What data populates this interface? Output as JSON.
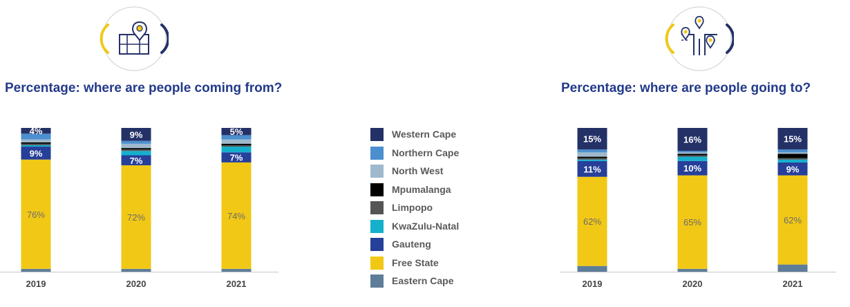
{
  "colors": {
    "Western Cape": "#233167",
    "Northern Cape": "#4b8fcf",
    "North West": "#9fb9cc",
    "Mpumalanga": "#000000",
    "Limpopo": "#555555",
    "KwaZulu-Natal": "#15b0cc",
    "Gauteng": "#263f99",
    "Free State": "#f1c816",
    "Eastern Cape": "#5e7d99",
    "accent_title": "#233a8a",
    "badge_yellow": "#f1c816",
    "badge_navy": "#233167"
  },
  "legend": {
    "items": [
      "Western Cape",
      "Northern Cape",
      "North West",
      "Mpumalanga",
      "Limpopo",
      "KwaZulu-Natal",
      "Gauteng",
      "Free State",
      "Eastern Cape"
    ]
  },
  "icons": {
    "left_badge": "map-pin-icon",
    "right_badge": "crossroads-icon"
  },
  "chart_data": [
    {
      "type": "bar",
      "stacked": true,
      "title": "Percentage: where are people coming from?",
      "categories": [
        "2019",
        "2020",
        "2021"
      ],
      "ylim": [
        0,
        100
      ],
      "grid": false,
      "series": [
        {
          "name": "Eastern Cape",
          "values": [
            2,
            2,
            2
          ]
        },
        {
          "name": "Free State",
          "values": [
            76,
            72,
            74
          ]
        },
        {
          "name": "Gauteng",
          "values": [
            9,
            7,
            7
          ]
        },
        {
          "name": "KwaZulu-Natal",
          "values": [
            1,
            3,
            4
          ]
        },
        {
          "name": "Limpopo",
          "values": [
            1,
            1,
            1
          ]
        },
        {
          "name": "Mpumalanga",
          "values": [
            1,
            1,
            1
          ]
        },
        {
          "name": "North West",
          "values": [
            2,
            3,
            3
          ]
        },
        {
          "name": "Northern Cape",
          "values": [
            4,
            2,
            3
          ]
        },
        {
          "name": "Western Cape",
          "values": [
            4,
            9,
            5
          ]
        }
      ],
      "data_labels": {
        "2019": {
          "Free State": "76%",
          "Gauteng": "9%",
          "Western Cape": "4%"
        },
        "2020": {
          "Free State": "72%",
          "Gauteng": "7%",
          "Western Cape": "9%"
        },
        "2021": {
          "Free State": "74%",
          "Gauteng": "7%",
          "Western Cape": "5%"
        }
      }
    },
    {
      "type": "bar",
      "stacked": true,
      "title": "Percentage: where are people going to?",
      "categories": [
        "2019",
        "2020",
        "2021"
      ],
      "ylim": [
        0,
        100
      ],
      "grid": false,
      "series": [
        {
          "name": "Eastern Cape",
          "values": [
            4,
            2,
            5
          ]
        },
        {
          "name": "Free State",
          "values": [
            62,
            65,
            62
          ]
        },
        {
          "name": "Gauteng",
          "values": [
            11,
            10,
            9
          ]
        },
        {
          "name": "KwaZulu-Natal",
          "values": [
            1,
            3,
            2
          ]
        },
        {
          "name": "Limpopo",
          "values": [
            1,
            1,
            1
          ]
        },
        {
          "name": "Mpumalanga",
          "values": [
            1,
            1,
            3
          ]
        },
        {
          "name": "North West",
          "values": [
            3,
            1,
            1
          ]
        },
        {
          "name": "Northern Cape",
          "values": [
            2,
            1,
            2
          ]
        },
        {
          "name": "Western Cape",
          "values": [
            15,
            16,
            15
          ]
        }
      ],
      "data_labels": {
        "2019": {
          "Free State": "62%",
          "Gauteng": "11%",
          "Western Cape": "15%"
        },
        "2020": {
          "Free State": "65%",
          "Gauteng": "10%",
          "Western Cape": "16%"
        },
        "2021": {
          "Free State": "62%",
          "Gauteng": "9%",
          "Western Cape": "15%"
        }
      }
    }
  ]
}
